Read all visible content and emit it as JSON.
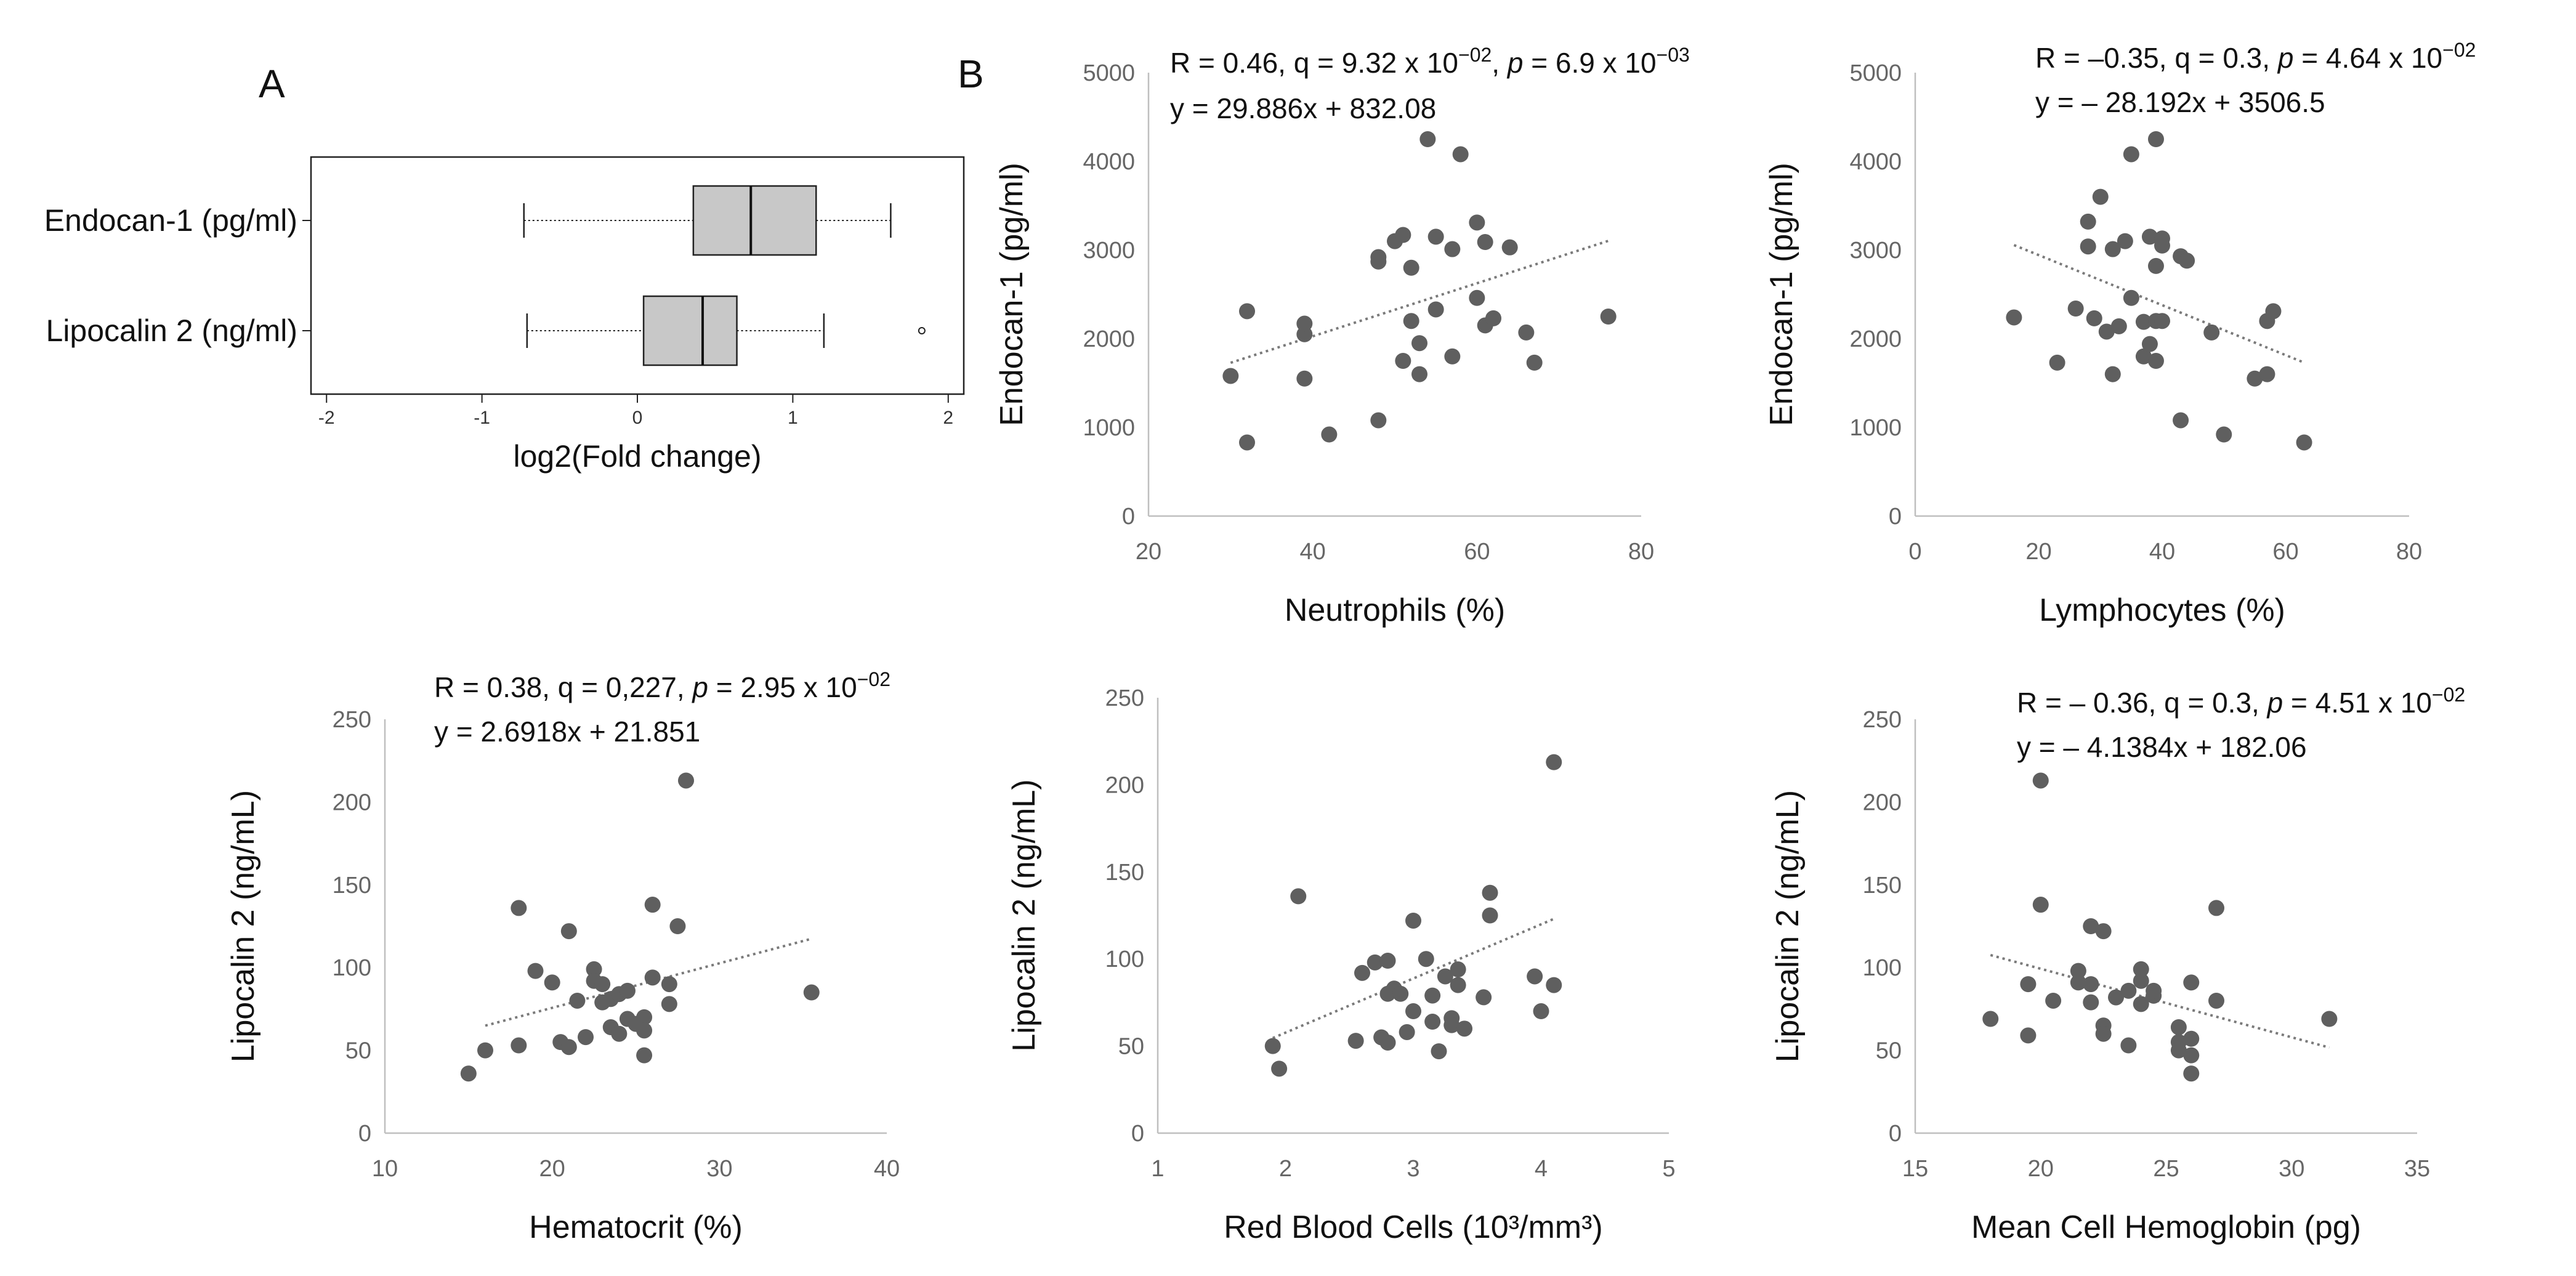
{
  "panel_labels": {
    "a": "A",
    "b": "B"
  },
  "colors": {
    "point": "#5f5f5f",
    "trend": "#7a7a7a",
    "axis": "#bfbfbf",
    "tick_text": "#666666",
    "box_fill": "#c8c8c8",
    "text": "#111111"
  },
  "chart_data": [
    {
      "id": "boxplot",
      "type": "boxplot",
      "xlabel": "log2(Fold change)",
      "xlim": [
        -2.1,
        2.1
      ],
      "xticks": [
        -2,
        -1,
        0,
        1,
        2
      ],
      "xtick_labels": [
        "-2",
        "-1",
        "0",
        "1",
        "2"
      ],
      "series": [
        {
          "name": "Endocan-1 (pg/ml)",
          "whisker_low": -0.73,
          "q1": 0.36,
          "median": 0.73,
          "q3": 1.15,
          "whisker_high": 1.63,
          "outliers": []
        },
        {
          "name": "Lipocalin 2 (ng/ml)",
          "whisker_low": -0.71,
          "q1": 0.04,
          "median": 0.42,
          "q3": 0.64,
          "whisker_high": 1.2,
          "outliers": [
            1.83
          ]
        }
      ]
    },
    {
      "id": "neutrophils",
      "type": "scatter",
      "xlabel": "Neutrophils (%)",
      "ylabel": "Endocan-1 (pg/ml)",
      "xlim": [
        20,
        80
      ],
      "ylim": [
        0,
        5000
      ],
      "xticks": [
        20,
        40,
        60,
        80
      ],
      "yticks": [
        0,
        1000,
        2000,
        3000,
        4000,
        5000
      ],
      "stat_line1": "R = 0.46, q = 9.32 x 10",
      "stat_line1_exp": "−02",
      "stat_line1_p": "p",
      "stat_line1_pval": " = 6.9 x 10",
      "stat_line1_pexp": "−03",
      "equation": "y = 29.886x + 832.08",
      "trend": {
        "slope": 29.886,
        "intercept": 832.08,
        "x0": 30,
        "x1": 76
      },
      "x": [
        30,
        32,
        32,
        39,
        39,
        39,
        42,
        48,
        48,
        48,
        50,
        51,
        51,
        52,
        52,
        53,
        53,
        54,
        55,
        55,
        57,
        57,
        58,
        60,
        60,
        61,
        61,
        62,
        64,
        66,
        67,
        76
      ],
      "y": [
        1580,
        2310,
        830,
        2050,
        2170,
        1550,
        920,
        2870,
        2920,
        1080,
        3100,
        3170,
        1750,
        2200,
        2800,
        1950,
        1600,
        4250,
        3150,
        2330,
        1800,
        3010,
        4080,
        2460,
        3310,
        3090,
        2150,
        2230,
        3030,
        2070,
        1730,
        2250
      ]
    },
    {
      "id": "lymphocytes",
      "type": "scatter",
      "xlabel": "Lymphocytes (%)",
      "ylabel": "Endocan-1 (pg/ml)",
      "xlim": [
        0,
        80
      ],
      "ylim": [
        0,
        5000
      ],
      "xticks": [
        0,
        20,
        40,
        60,
        80
      ],
      "yticks": [
        0,
        1000,
        2000,
        3000,
        4000,
        5000
      ],
      "stat_line1": "R = –0.35, q = 0.3, ",
      "stat_line1_exp": "",
      "stat_line1_p": "p",
      "stat_line1_pval": " = 4.64 x 10",
      "stat_line1_pexp": "−02",
      "equation": "y = – 28.192x + 3506.5",
      "trend": {
        "slope": -28.192,
        "intercept": 3506.5,
        "x0": 16,
        "x1": 63
      },
      "x": [
        16,
        23,
        26,
        28,
        28,
        29,
        30,
        31,
        32,
        32,
        33,
        34,
        35,
        35,
        37,
        37,
        38,
        38,
        39,
        39,
        39,
        39,
        40,
        40,
        40,
        43,
        43,
        44,
        48,
        50,
        55,
        57,
        57,
        58,
        63
      ],
      "y": [
        2240,
        1730,
        2340,
        3040,
        3320,
        2230,
        3600,
        2080,
        3010,
        1600,
        2140,
        3100,
        2460,
        4080,
        2190,
        1800,
        1940,
        3150,
        2200,
        4250,
        1750,
        2820,
        3050,
        3130,
        2200,
        2930,
        1080,
        2880,
        2070,
        920,
        1550,
        1600,
        2200,
        2310,
        830
      ]
    },
    {
      "id": "hematocrit",
      "type": "scatter",
      "xlabel": "Hematocrit (%)",
      "ylabel": "Lipocalin 2 (ng/mL)",
      "xlim": [
        10,
        40
      ],
      "ylim": [
        0,
        250
      ],
      "xticks": [
        10,
        20,
        30,
        40
      ],
      "yticks": [
        0,
        50,
        100,
        150,
        200,
        250
      ],
      "stat_line1": "R = 0.38, q = 0,227, ",
      "stat_line1_exp": "",
      "stat_line1_p": "p",
      "stat_line1_pval": " = 2.95 x 10",
      "stat_line1_pexp": "−02",
      "equation": "y = 2.6918x + 21.851",
      "trend": {
        "slope": 2.6918,
        "intercept": 21.851,
        "x0": 16,
        "x1": 35.5
      },
      "x": [
        15,
        16,
        18,
        18,
        19,
        20,
        20.5,
        21,
        21,
        21.5,
        22,
        22.5,
        22.5,
        23,
        23,
        23.5,
        23.5,
        24,
        24,
        24.5,
        24.5,
        25,
        25.5,
        25.5,
        25.5,
        26,
        26,
        27,
        27,
        27.5,
        28,
        35.5
      ],
      "y": [
        36,
        50,
        53,
        136,
        98,
        91,
        55,
        122,
        52,
        80,
        58,
        99,
        92,
        90,
        79,
        64,
        81,
        84,
        60,
        86,
        69,
        66,
        47,
        70,
        62,
        94,
        138,
        90,
        78,
        125,
        213,
        85
      ]
    },
    {
      "id": "rbc",
      "type": "scatter",
      "xlabel": "Red Blood Cells (10³/mm³)",
      "ylabel": "Lipocalin 2 (ng/mL)",
      "xlim": [
        1,
        5
      ],
      "ylim": [
        0,
        250
      ],
      "xticks": [
        1,
        2,
        3,
        4,
        5
      ],
      "yticks": [
        0,
        50,
        100,
        150,
        200,
        250
      ],
      "stat_line1": "",
      "stat_line1_exp": "",
      "stat_line1_p": "",
      "stat_line1_pval": "",
      "stat_line1_pexp": "",
      "equation": "",
      "trend": {
        "slope": 31.1,
        "intercept": -4.5,
        "x0": 1.9,
        "x1": 4.1
      },
      "x": [
        1.9,
        1.95,
        2.1,
        2.55,
        2.6,
        2.7,
        2.75,
        2.8,
        2.8,
        2.8,
        2.85,
        2.9,
        2.95,
        3.0,
        3.0,
        3.1,
        3.15,
        3.15,
        3.2,
        3.25,
        3.3,
        3.3,
        3.35,
        3.35,
        3.4,
        3.55,
        3.6,
        3.6,
        3.95,
        4.0,
        4.1,
        4.1
      ],
      "y": [
        50,
        37,
        136,
        53,
        92,
        98,
        55,
        80,
        52,
        99,
        83,
        80,
        58,
        70,
        122,
        100,
        79,
        64,
        47,
        90,
        66,
        62,
        85,
        94,
        60,
        78,
        138,
        125,
        90,
        70,
        85,
        213
      ]
    },
    {
      "id": "mch",
      "type": "scatter",
      "xlabel": "Mean Cell Hemoglobin (pg)",
      "ylabel": "Lipocalin 2 (ng/mL)",
      "xlim": [
        15,
        35
      ],
      "ylim": [
        0,
        250
      ],
      "xticks": [
        15,
        20,
        25,
        30,
        35
      ],
      "yticks": [
        0,
        50,
        100,
        150,
        200,
        250
      ],
      "stat_line1": "R = – 0.36, q = 0.3, ",
      "stat_line1_exp": "",
      "stat_line1_p": "p",
      "stat_line1_pval": " = 4.51 x 10",
      "stat_line1_pexp": "−02",
      "equation": "y = – 4.1384x + 182.06",
      "trend": {
        "slope": -4.1384,
        "intercept": 182.06,
        "x0": 18,
        "x1": 31.5
      },
      "x": [
        18,
        19.5,
        19.5,
        20,
        20,
        20.5,
        21.5,
        21.5,
        22,
        22,
        22,
        22.5,
        22.5,
        22.5,
        23,
        23.5,
        23.5,
        24,
        24,
        24,
        24.5,
        24.5,
        25.5,
        25.5,
        25.5,
        26,
        26,
        26,
        26,
        27,
        27,
        31.5
      ],
      "y": [
        69,
        59,
        90,
        213,
        138,
        80,
        91,
        98,
        125,
        90,
        79,
        65,
        60,
        122,
        82,
        53,
        86,
        92,
        99,
        78,
        83,
        86,
        64,
        55,
        50,
        91,
        57,
        47,
        36,
        136,
        80,
        69
      ]
    }
  ]
}
